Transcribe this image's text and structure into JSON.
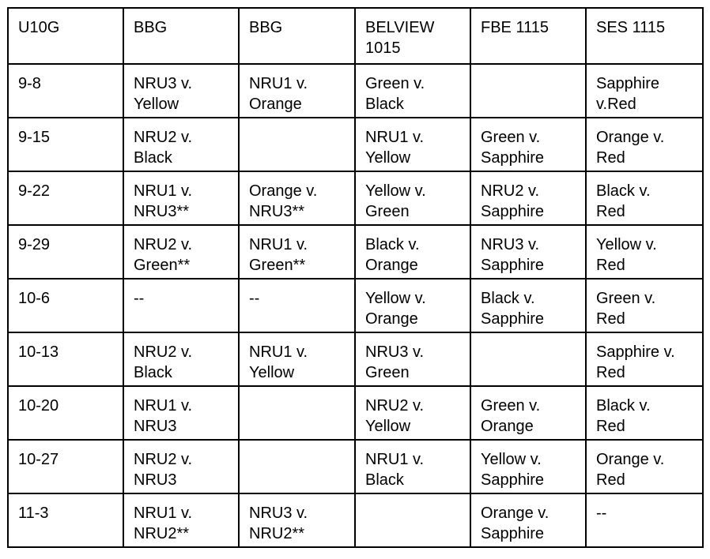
{
  "table": {
    "header": [
      "U10G",
      "BBG",
      "BBG",
      "BELVIEW\n1015",
      "FBE 1115",
      "SES 1115"
    ],
    "rows": [
      [
        "9-8",
        "NRU3 v.\nYellow",
        "NRU1 v.\nOrange",
        "Green v.\nBlack",
        null,
        "Sapphire\nv.Red"
      ],
      [
        "9-15",
        "NRU2 v.\nBlack",
        null,
        "NRU1 v.\nYellow",
        "Green v.\nSapphire",
        "Orange v.\nRed"
      ],
      [
        "9-22",
        "NRU1 v.\nNRU3**",
        "Orange v.\nNRU3**",
        "Yellow v.\nGreen",
        "NRU2 v.\nSapphire",
        "Black v.\nRed"
      ],
      [
        "9-29",
        "NRU2 v.\nGreen**",
        "NRU1 v.\nGreen**",
        "Black v.\nOrange",
        "NRU3 v.\nSapphire",
        "Yellow v.\nRed"
      ],
      [
        "10-6",
        "--",
        "--",
        "Yellow v.\nOrange",
        "Black v.\nSapphire",
        "Green v.\nRed"
      ],
      [
        "10-13",
        "NRU2 v.\nBlack",
        "NRU1 v.\nYellow",
        "NRU3 v.\nGreen",
        null,
        "Sapphire v.\nRed"
      ],
      [
        "10-20",
        "NRU1 v.\nNRU3",
        null,
        "NRU2 v.\nYellow",
        "Green v.\nOrange",
        "Black v.\nRed"
      ],
      [
        "10-27",
        "NRU2 v.\nNRU3",
        null,
        "NRU1 v.\nBlack",
        "Yellow v.\nSapphire",
        "Orange v.\nRed"
      ],
      [
        "11-3",
        "NRU1 v.\nNRU2**",
        "NRU3 v.\nNRU2**",
        null,
        "Orange v.\nSapphire",
        "--"
      ]
    ]
  }
}
